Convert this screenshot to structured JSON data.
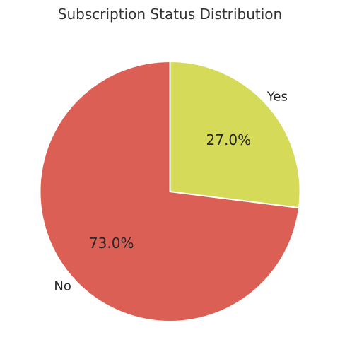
{
  "chart_data": {
    "type": "pie",
    "title": "Subscription Status Distribution",
    "categories": [
      "No",
      "Yes"
    ],
    "values": [
      73.0,
      27.0
    ],
    "percent_labels": [
      "73.0%",
      "27.0%"
    ],
    "start_angle_deg": 90,
    "direction": "counterclockwise",
    "colors": [
      "#dc5f55",
      "#d5db58"
    ],
    "edge_color": "#ffffff",
    "legend": "none"
  }
}
